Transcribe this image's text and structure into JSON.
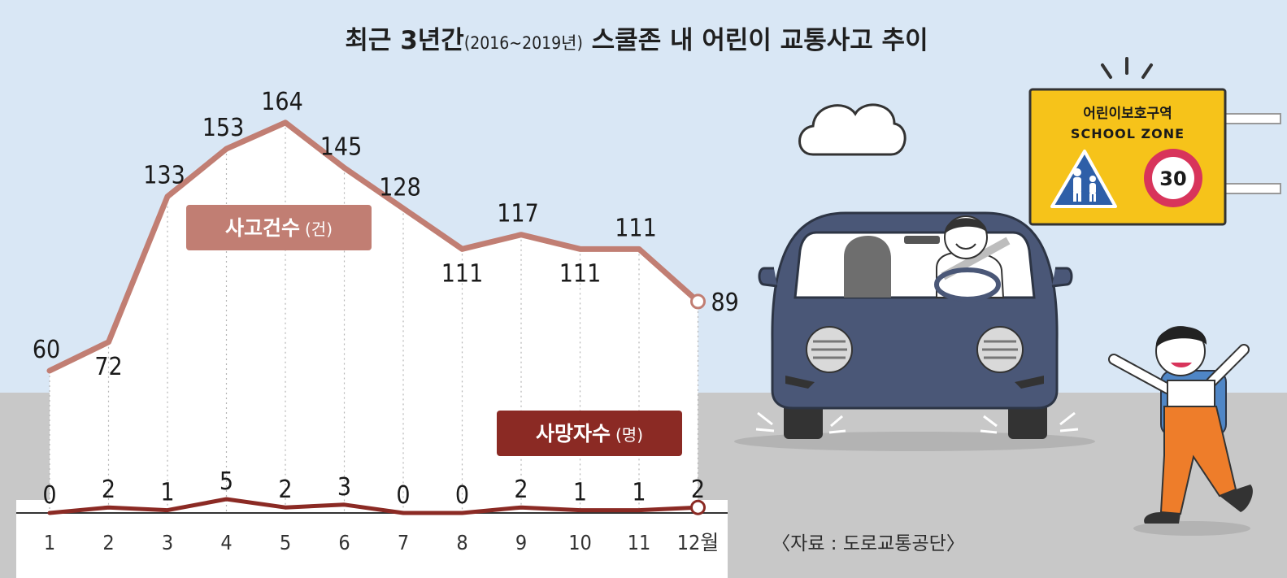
{
  "chart_data": {
    "type": "line",
    "title_main_a": "최근 3년간",
    "title_sub": "(2016~2019년)",
    "title_main_b": " 스쿨존 내 어린이 교통사고 추이",
    "categories": [
      "1",
      "2",
      "3",
      "4",
      "5",
      "6",
      "7",
      "8",
      "9",
      "10",
      "11",
      "12"
    ],
    "x_unit_suffix": "월",
    "series": [
      {
        "key": "accidents",
        "name_main": "사고건수",
        "name_unit": "(건)",
        "color": "#c17e73",
        "values": [
          60,
          72,
          133,
          153,
          164,
          145,
          128,
          111,
          117,
          111,
          111,
          89
        ]
      },
      {
        "key": "deaths",
        "name_main": "사망자수",
        "name_unit": "(명)",
        "color": "#8b2a24",
        "values": [
          0,
          2,
          1,
          5,
          2,
          3,
          0,
          0,
          2,
          1,
          1,
          2
        ]
      }
    ],
    "source": "〈자료 : 도로교통공단〉",
    "grid": false
  },
  "illustration": {
    "sign_korean": "어린이보호구역",
    "sign_english": "SCHOOL ZONE",
    "speed_limit": "30"
  },
  "colors": {
    "sky": "#d9e7f5",
    "ground": "#c8c8c8",
    "car_body": "#4a5777",
    "sign_yellow": "#f6c31a",
    "sign_blue": "#2e5fa8",
    "speed_ring": "#d8345b",
    "kid_overall": "#ee7d2a"
  }
}
